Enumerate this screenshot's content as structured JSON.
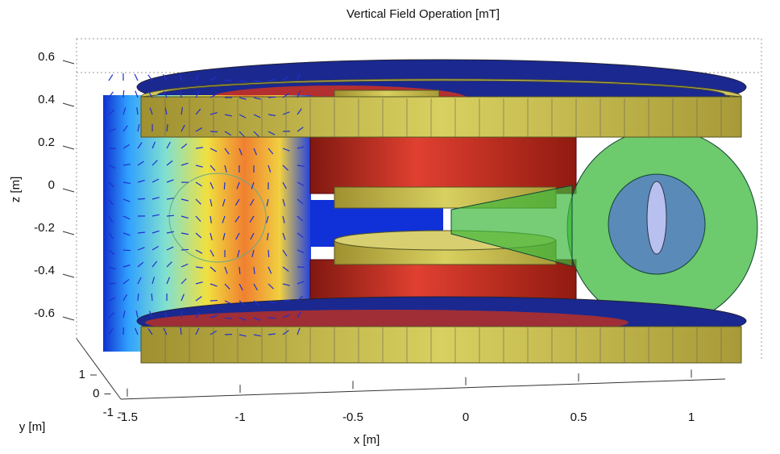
{
  "title": "Vertical Field Operation [mT]",
  "axes": {
    "x": {
      "label": "x [m]",
      "ticks": [
        -1.5,
        -1,
        -0.5,
        0,
        0.5,
        1
      ]
    },
    "y": {
      "label": "y [m]",
      "ticks": [
        1,
        0,
        -1
      ]
    },
    "z": {
      "label": "z [m]",
      "ticks": [
        0.6,
        0.4,
        0.2,
        0,
        -0.2,
        -0.4,
        -0.6
      ]
    }
  }
}
